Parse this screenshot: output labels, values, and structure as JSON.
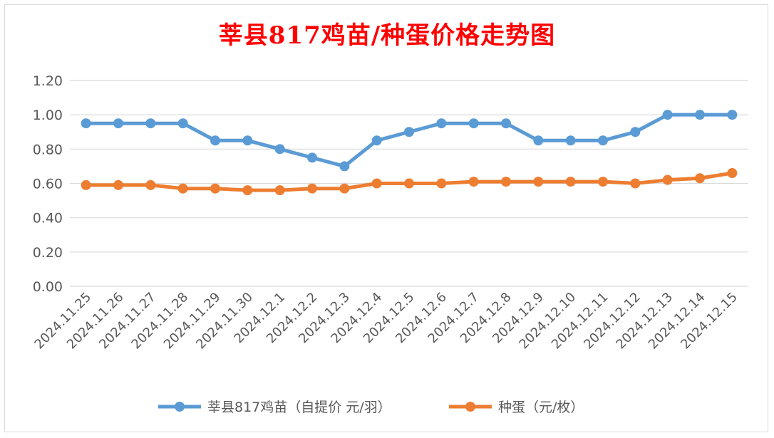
{
  "chart_data": {
    "type": "line",
    "title": "莘县817鸡苗/种蛋价格走势图",
    "categories": [
      "2024.11.25",
      "2024.11.26",
      "2024.11.27",
      "2024.11.28",
      "2024.11.29",
      "2024.11.30",
      "2024.12.1",
      "2024.12.2",
      "2024.12.3",
      "2024.12.4",
      "2024.12.5",
      "2024.12.6",
      "2024.12.7",
      "2024.12.8",
      "2024.12.9",
      "2024.12.10",
      "2024.12.11",
      "2024.12.12",
      "2024.12.13",
      "2024.12.14",
      "2024.12.15"
    ],
    "series": [
      {
        "name": "莘县817鸡苗（自提价 元/羽）",
        "color": "#5b9bd5",
        "values": [
          0.95,
          0.95,
          0.95,
          0.95,
          0.85,
          0.85,
          0.8,
          0.75,
          0.7,
          0.85,
          0.9,
          0.95,
          0.95,
          0.95,
          0.85,
          0.85,
          0.85,
          0.9,
          1.0,
          1.0,
          1.0
        ]
      },
      {
        "name": "种蛋（元/枚）",
        "color": "#ed7d31",
        "values": [
          0.59,
          0.59,
          0.59,
          0.57,
          0.57,
          0.56,
          0.56,
          0.57,
          0.57,
          0.6,
          0.6,
          0.6,
          0.61,
          0.61,
          0.61,
          0.61,
          0.61,
          0.6,
          0.62,
          0.63,
          0.66
        ]
      }
    ],
    "ylim": [
      0,
      1.2
    ],
    "yticks": [
      "0.00",
      "0.20",
      "0.40",
      "0.60",
      "0.80",
      "1.00",
      "1.20"
    ],
    "grid": true,
    "legend": "bottom",
    "title_color": "#ff0000"
  }
}
